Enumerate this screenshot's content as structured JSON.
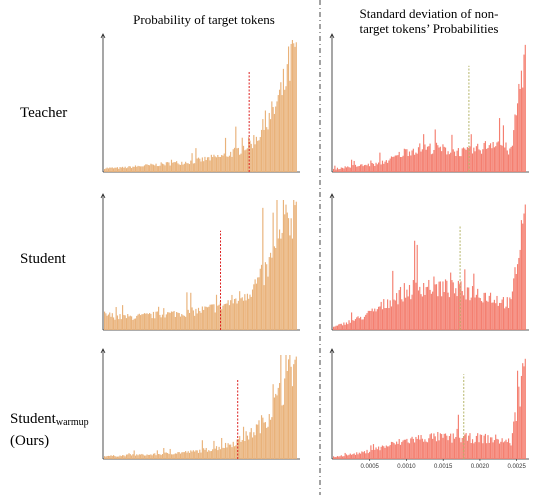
{
  "titles": {
    "left": "Probability of target tokens",
    "right_line1": "Standard deviation of non-",
    "right_line2": "target tokens’ Probabilities"
  },
  "rows": {
    "teacher": "Teacher",
    "student": "Student",
    "warmup_main": "Student",
    "warmup_sub": "warmup",
    "warmup_note": "(Ours)"
  },
  "colors": {
    "left_hist": "#e9b27a",
    "right_hist": "#f47f70",
    "left_marker": "#dd2222",
    "right_marker": "#b5b56a",
    "axis": "#222222",
    "divider": "#444444"
  },
  "chart_data": [
    {
      "type": "bar",
      "panel": "Teacher / Probability of target tokens",
      "x": [
        0,
        1
      ],
      "mean_marker": 0.76,
      "shape": [
        0.03,
        0.03,
        0.04,
        0.05,
        0.06,
        0.07,
        0.08,
        0.1,
        0.12,
        0.16,
        0.23,
        0.36,
        0.6,
        1.0
      ]
    },
    {
      "type": "bar",
      "panel": "Student / Probability of target tokens",
      "x": [
        0,
        1
      ],
      "mean_marker": 0.61,
      "shape": [
        0.12,
        0.1,
        0.1,
        0.11,
        0.12,
        0.13,
        0.14,
        0.16,
        0.19,
        0.24,
        0.32,
        0.46,
        0.7,
        1.0
      ]
    },
    {
      "type": "bar",
      "panel": "Student_warmup (Ours) / Probability of target tokens",
      "x": [
        0,
        1
      ],
      "mean_marker": 0.7,
      "shape": [
        0.03,
        0.03,
        0.04,
        0.04,
        0.05,
        0.06,
        0.07,
        0.09,
        0.12,
        0.17,
        0.25,
        0.4,
        0.65,
        1.0
      ]
    },
    {
      "type": "bar",
      "panel": "Teacher / Standard deviation of non-target tokens' Probabilities",
      "x": [
        0,
        0.0026
      ],
      "mean_marker": 0.00185,
      "shape": [
        0.02,
        0.04,
        0.05,
        0.06,
        0.1,
        0.16,
        0.18,
        0.18,
        0.16,
        0.15,
        0.18,
        0.24,
        0.15,
        1.0
      ]
    },
    {
      "type": "bar",
      "panel": "Student / Standard deviation of non-target tokens' Probabilities",
      "x": [
        0,
        0.0026
      ],
      "mean_marker": 0.00173,
      "shape": [
        0.02,
        0.06,
        0.1,
        0.16,
        0.24,
        0.3,
        0.34,
        0.33,
        0.31,
        0.3,
        0.28,
        0.24,
        0.2,
        1.0
      ]
    },
    {
      "type": "bar",
      "panel": "Student_warmup (Ours) / Standard deviation of non-target tokens' Probabilities",
      "x": [
        0,
        0.0026
      ],
      "mean_marker": 0.00178,
      "xticks": [
        "0.0005",
        "0.0010",
        "0.0015",
        "0.0020",
        "0.0025"
      ],
      "xtick_values": [
        0.0005,
        0.001,
        0.0015,
        0.002,
        0.0025
      ],
      "shape": [
        0.02,
        0.04,
        0.06,
        0.1,
        0.14,
        0.18,
        0.2,
        0.21,
        0.2,
        0.2,
        0.2,
        0.19,
        0.16,
        1.0
      ]
    }
  ]
}
